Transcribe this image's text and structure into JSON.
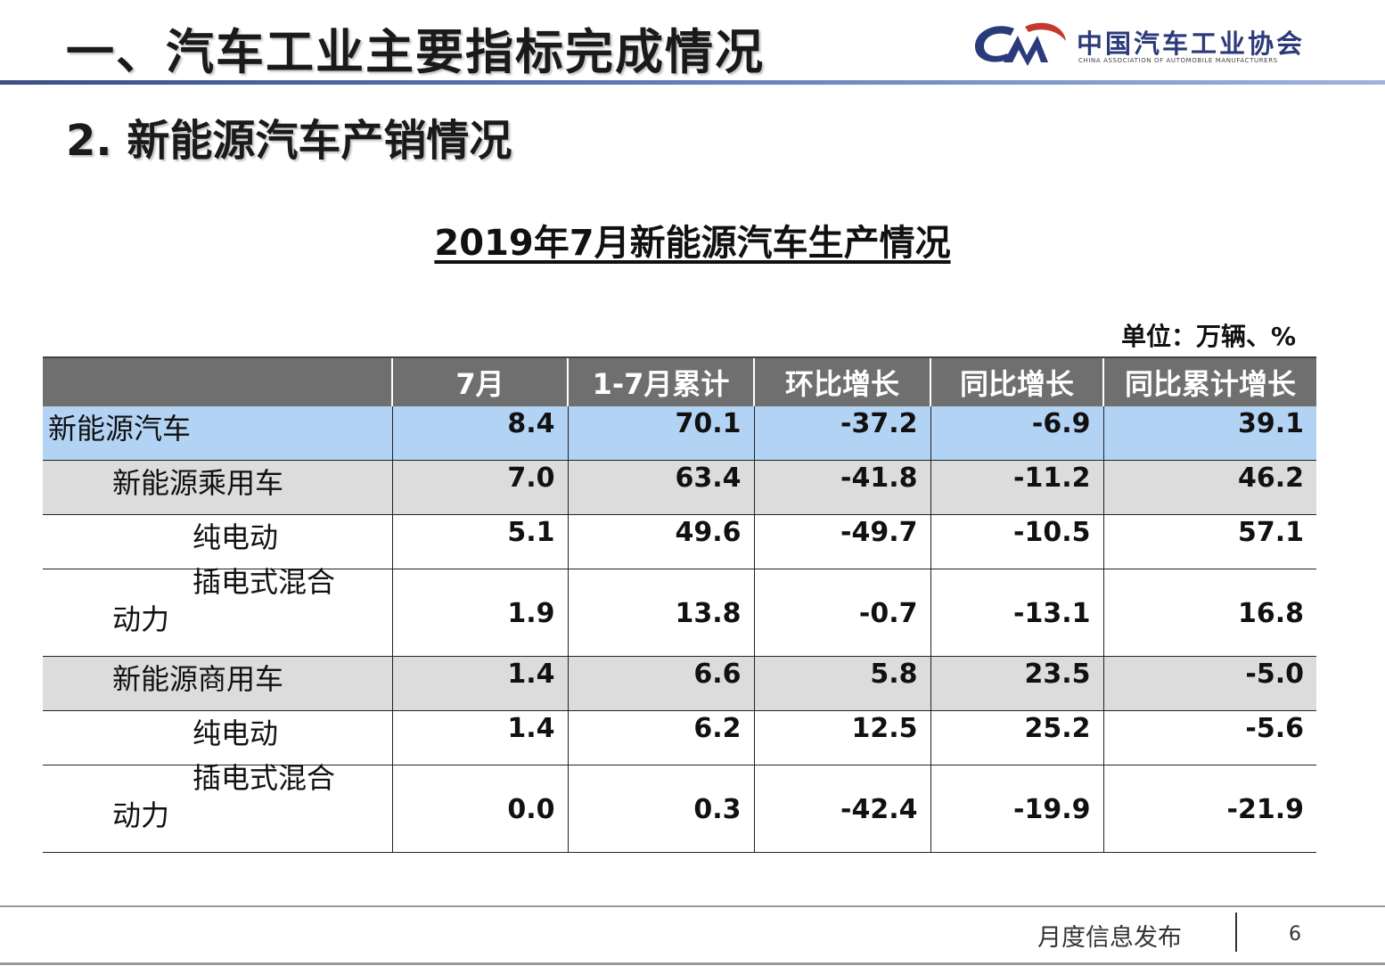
{
  "header": {
    "title": "一、汽车工业主要指标完成情况",
    "logo_text_cn": "中国汽车工业协会",
    "logo_text_en": "CHINA ASSOCIATION OF AUTOMOBILE MANUFACTURERS"
  },
  "subtitle": "2. 新能源汽车产销情况",
  "table_title": "2019年7月新能源汽车生产情况",
  "unit": "单位：万辆、%",
  "table": {
    "columns": [
      "",
      "7月",
      "1-7月累计",
      "环比增长",
      "同比增长",
      "同比累计增长"
    ],
    "rows": [
      {
        "label": "新能源汽车",
        "values": [
          "8.4",
          "70.1",
          "-37.2",
          "-6.9",
          "39.1"
        ]
      },
      {
        "label": "新能源乘用车",
        "values": [
          "7.0",
          "63.4",
          "-41.8",
          "-11.2",
          "46.2"
        ]
      },
      {
        "label": "纯电动",
        "values": [
          "5.1",
          "49.6",
          "-49.7",
          "-10.5",
          "57.1"
        ]
      },
      {
        "label_line1": "插电式混合",
        "label_line2": "动力",
        "values": [
          "1.9",
          "13.8",
          "-0.7",
          "-13.1",
          "16.8"
        ]
      },
      {
        "label": "新能源商用车",
        "values": [
          "1.4",
          "6.6",
          "5.8",
          "23.5",
          "-5.0"
        ]
      },
      {
        "label": "纯电动",
        "values": [
          "1.4",
          "6.2",
          "12.5",
          "25.2",
          "-5.6"
        ]
      },
      {
        "label_line1": "插电式混合",
        "label_line2": "动力",
        "values": [
          "0.0",
          "0.3",
          "-42.4",
          "-19.9",
          "-21.9"
        ]
      }
    ]
  },
  "footer": {
    "text": "月度信息发布",
    "page": "6"
  },
  "colors": {
    "header_bg": "#6f6f6f",
    "highlight_row": "#b3d3f4",
    "grey_row": "#dcdcdc",
    "brand_blue": "#2b3a7a"
  }
}
